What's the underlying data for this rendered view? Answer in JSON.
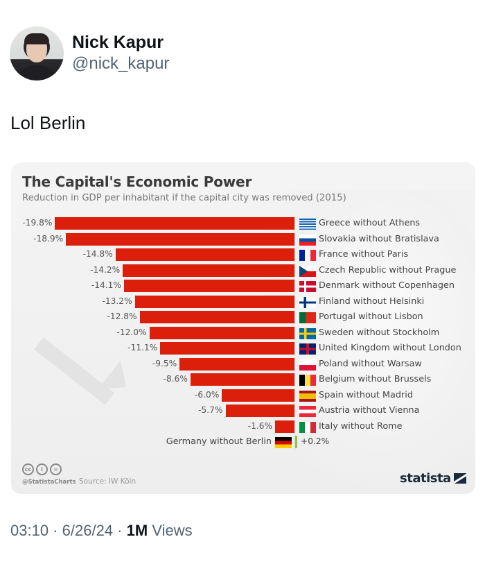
{
  "tweet": {
    "author": {
      "display_name": "Nick Kapur",
      "handle": "@nick_kapur"
    },
    "text": "Lol Berlin",
    "time": "03:10",
    "separator": "·",
    "date": "6/26/24",
    "views_count": "1M",
    "views_label": "Views"
  },
  "chart": {
    "title": "The Capital's Economic Power",
    "subtitle": "Reduction in GDP per inhabitant if the capital city was removed (2015)",
    "footer": {
      "license_icons": [
        "cc",
        "by",
        "nd"
      ],
      "handle": "@StatistaCharts",
      "source": "Source: IW Köln",
      "brand": "statista"
    },
    "colors": {
      "negative_bar": "#dc1f0a",
      "positive_bar": "#8dc63f"
    }
  },
  "chart_data": {
    "type": "bar",
    "orientation": "horizontal",
    "title": "The Capital's Economic Power",
    "subtitle": "Reduction in GDP per inhabitant if the capital city was removed (2015)",
    "xlabel": "",
    "ylabel": "",
    "categories": [
      "Greece without Athens",
      "Slovakia without Bratislava",
      "France without Paris",
      "Czech Republic without Prague",
      "Denmark without Copenhagen",
      "Finland without Helsinki",
      "Portugal without Lisbon",
      "Sweden without Stockholm",
      "United Kingdom without London",
      "Poland without Warsaw",
      "Belgium without Brussels",
      "Spain without Madrid",
      "Austria without Vienna",
      "Italy without Rome",
      "Germany without Berlin"
    ],
    "values": [
      -19.8,
      -18.9,
      -14.8,
      -14.2,
      -14.1,
      -13.2,
      -12.8,
      -12.0,
      -11.1,
      -9.5,
      -8.6,
      -6.0,
      -5.7,
      -1.6,
      0.2
    ],
    "value_labels": [
      "-19.8%",
      "-18.9%",
      "-14.8%",
      "-14.2%",
      "-14.1%",
      "-13.2%",
      "-12.8%",
      "-12.0%",
      "-11.1%",
      "-9.5%",
      "-8.6%",
      "-6.0%",
      "-5.7%",
      "-1.6%",
      "+0.2%"
    ],
    "flags": [
      "greece",
      "slovakia",
      "france",
      "czech-republic",
      "denmark",
      "finland",
      "portugal",
      "sweden",
      "united-kingdom",
      "poland",
      "belgium",
      "spain",
      "austria",
      "italy",
      "germany"
    ],
    "unit": "%",
    "xlim": [
      -20,
      0.5
    ],
    "grid": false,
    "legend": "none",
    "source": "IW Köln"
  }
}
